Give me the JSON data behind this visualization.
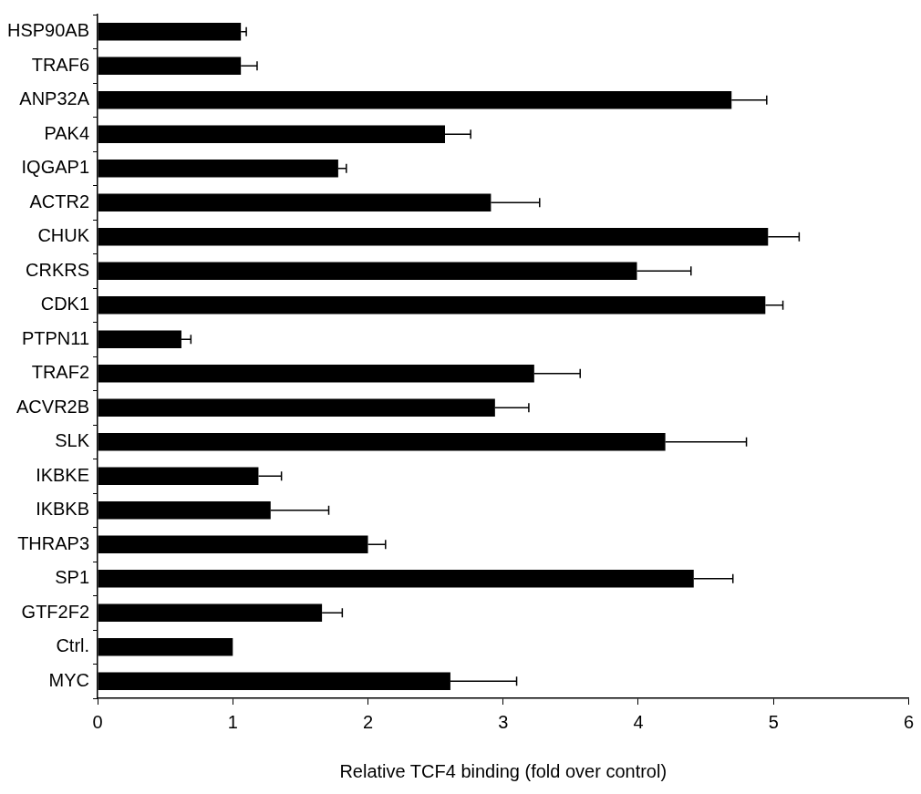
{
  "chart_data": {
    "type": "bar",
    "orientation": "horizontal",
    "xlabel": "Relative TCF4 binding (fold over control)",
    "categories": [
      "HSP90AB",
      "TRAF6",
      "ANP32A",
      "PAK4",
      "IQGAP1",
      "ACTR2",
      "CHUK",
      "CRKRS",
      "CDK1",
      "PTPN11",
      "TRAF2",
      "ACVR2B",
      "SLK",
      "IKBKE",
      "IKBKB",
      "THRAP3",
      "SP1",
      "GTF2F2",
      "Ctrl.",
      "MYC"
    ],
    "values": [
      1.06,
      1.06,
      4.69,
      2.57,
      1.78,
      2.91,
      4.96,
      3.99,
      4.94,
      0.62,
      3.23,
      2.94,
      4.2,
      1.19,
      1.28,
      2.0,
      4.41,
      1.66,
      1.0,
      2.61
    ],
    "errors": [
      [
        1.06,
        1.1
      ],
      [
        1.06,
        1.18
      ],
      [
        4.69,
        4.95
      ],
      [
        2.57,
        2.76
      ],
      [
        1.78,
        1.84
      ],
      [
        2.91,
        3.27
      ],
      [
        4.96,
        5.19
      ],
      [
        3.99,
        4.39
      ],
      [
        4.94,
        5.07
      ],
      [
        0.62,
        0.69
      ],
      [
        3.23,
        3.57
      ],
      [
        2.94,
        3.19
      ],
      [
        4.2,
        4.8
      ],
      [
        1.19,
        1.36
      ],
      [
        1.28,
        1.71
      ],
      [
        2.0,
        2.13
      ],
      [
        4.41,
        4.7
      ],
      [
        1.66,
        1.81
      ],
      null,
      [
        2.61,
        3.1
      ]
    ],
    "color": "#000000",
    "xlim": [
      0,
      6
    ],
    "xticks": [
      0,
      1,
      2,
      3,
      4,
      5,
      6
    ],
    "grid": false,
    "legend": false
  }
}
